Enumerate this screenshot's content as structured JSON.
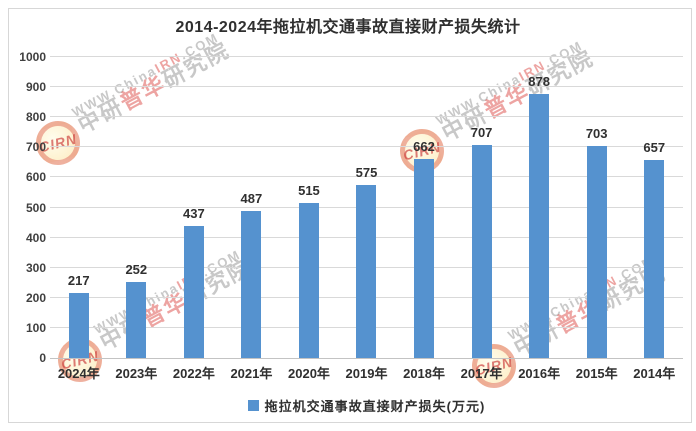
{
  "chart_data": {
    "type": "bar",
    "title": "2014-2024年拖拉机交通事故直接财产损失统计",
    "categories": [
      "2024年",
      "2023年",
      "2022年",
      "2021年",
      "2020年",
      "2019年",
      "2018年",
      "2017年",
      "2016年",
      "2015年",
      "2014年"
    ],
    "values": [
      217,
      252,
      437,
      487,
      515,
      575,
      662,
      707,
      878,
      703,
      657
    ],
    "series_name": "拖拉机交通事故直接财产损失(万元)",
    "ylim": [
      0,
      1000
    ],
    "yticks": [
      0,
      100,
      200,
      300,
      400,
      500,
      600,
      700,
      800,
      900,
      1000
    ],
    "grid": "horizontal",
    "legend_position": "bottom",
    "bar_color": "#5592CF",
    "value_label_color": "#303030",
    "xlabel": "",
    "ylabel": ""
  },
  "watermark": {
    "site_prefix": "WWW.China",
    "site_highlight": "IRN",
    "site_suffix": ".COM",
    "brand_gray1": "中研",
    "brand_red": "普华",
    "brand_gray2": "研究院",
    "logo_text": "CIRN"
  }
}
